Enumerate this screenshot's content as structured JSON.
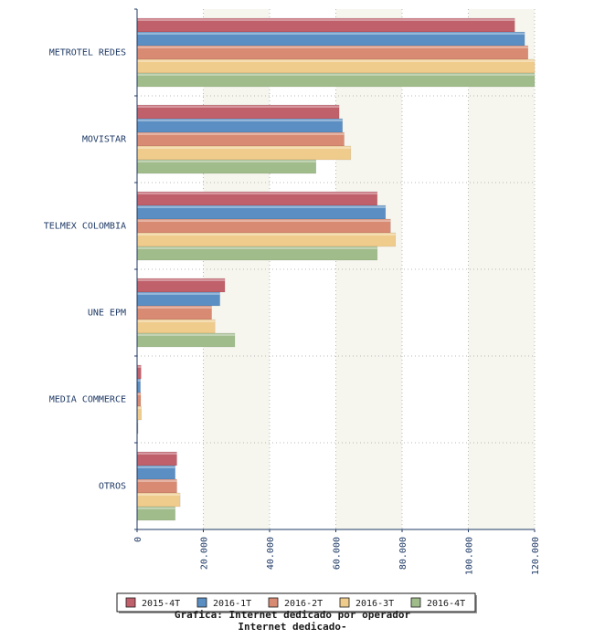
{
  "chart_data": {
    "type": "bar",
    "orientation": "horizontal",
    "categories": [
      "METROTEL REDES",
      "MOVISTAR",
      "TELMEX COLOMBIA",
      "UNE EPM",
      "MEDIA COMMERCE",
      "OTROS"
    ],
    "series": [
      {
        "name": "2015-4T",
        "color": "#c0606a",
        "values": [
          114000,
          61000,
          72500,
          26500,
          1200,
          12000
        ]
      },
      {
        "name": "2016-1T",
        "color": "#5b8fc4",
        "values": [
          117000,
          62000,
          75000,
          25000,
          1000,
          11500
        ]
      },
      {
        "name": "2016-2T",
        "color": "#d98a72",
        "values": [
          118000,
          62500,
          76500,
          22500,
          1100,
          12000
        ]
      },
      {
        "name": "2016-3T",
        "color": "#f0cc8c",
        "values": [
          120000,
          64500,
          78000,
          23500,
          1300,
          13000
        ]
      },
      {
        "name": "2016-4T",
        "color": "#a0bc8a",
        "values": [
          120000,
          54000,
          72500,
          29500,
          300,
          11500
        ]
      }
    ],
    "xlim": [
      0,
      120000
    ],
    "x_ticks": [
      0,
      20000,
      40000,
      60000,
      80000,
      100000,
      120000
    ],
    "x_tick_labels": [
      "0",
      "20.000",
      "40.000",
      "60.000",
      "80.000",
      "100.000",
      "120.000"
    ],
    "grid": true,
    "legend_position": "bottom",
    "caption_line1": "Grafica: Internet dedicado por operador",
    "caption_line2": "Internet dedicado-"
  }
}
